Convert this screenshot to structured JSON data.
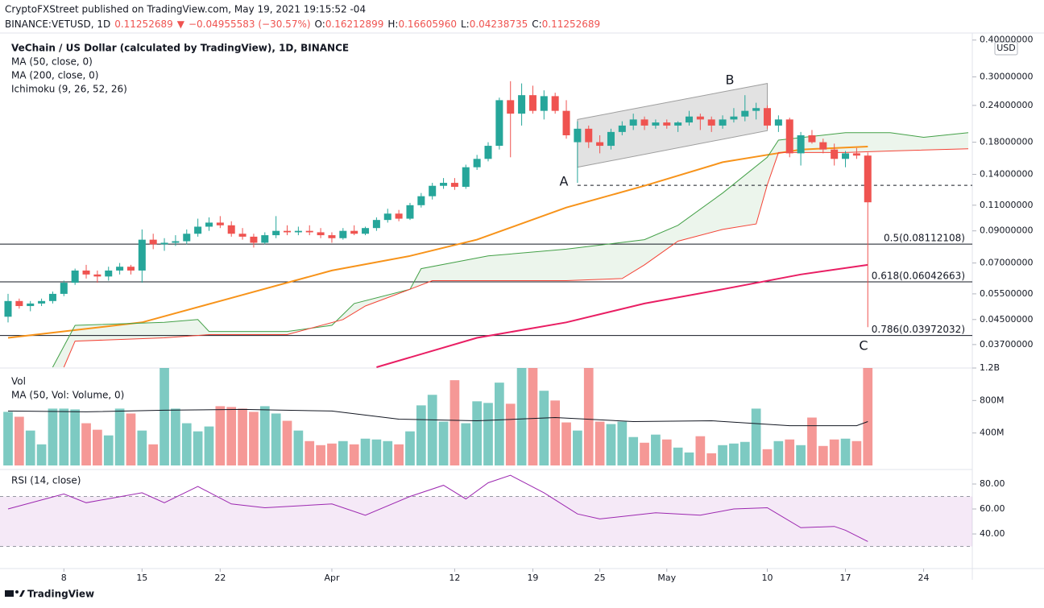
{
  "header": {
    "publisher": "CryptoFXStreet published on TradingView.com, May 19, 2021 19:15:52 -04",
    "symbol": "BINANCE:VETUSD, 1D",
    "last": "0.11252689",
    "arrow": "▼",
    "change": "−0.04955583 (−30.57%)",
    "ohlc": [
      {
        "label": "O:",
        "value": "0.16212899"
      },
      {
        "label": "H:",
        "value": "0.16605960"
      },
      {
        "label": "L:",
        "value": "0.04238735"
      },
      {
        "label": "C:",
        "value": "0.11252689"
      }
    ]
  },
  "footer": "TradingView",
  "chart_data": {
    "type": "candlestick",
    "title": "VeChain / US Dollar (calculated by TradingView), 1D, BINANCE",
    "currency": "USD",
    "log_scale": true,
    "xlim": [
      "2021-03-03",
      "2021-05-28"
    ],
    "xticks": [
      {
        "value": "2021-03-08",
        "label": "8"
      },
      {
        "value": "2021-03-15",
        "label": "15"
      },
      {
        "value": "2021-03-22",
        "label": "22"
      },
      {
        "value": "2021-04-01",
        "label": "Apr"
      },
      {
        "value": "2021-04-12",
        "label": "12"
      },
      {
        "value": "2021-04-19",
        "label": "19"
      },
      {
        "value": "2021-04-25",
        "label": "25"
      },
      {
        "value": "2021-05-01",
        "label": "May"
      },
      {
        "value": "2021-05-10",
        "label": "10"
      },
      {
        "value": "2021-05-17",
        "label": "17"
      },
      {
        "value": "2021-05-24",
        "label": "24"
      }
    ],
    "ylim": [
      0.0308,
      0.42
    ],
    "yticks": [
      {
        "value": 0.4,
        "label": "0.40000000"
      },
      {
        "value": 0.3,
        "label": "0.30000000"
      },
      {
        "value": 0.24,
        "label": "0.24000000"
      },
      {
        "value": 0.18,
        "label": "0.18000000"
      },
      {
        "value": 0.14,
        "label": "0.14000000"
      },
      {
        "value": 0.11,
        "label": "0.11000000"
      },
      {
        "value": 0.09,
        "label": "0.09000000"
      },
      {
        "value": 0.07,
        "label": "0.07000000"
      },
      {
        "value": 0.055,
        "label": "0.05500000"
      },
      {
        "value": 0.045,
        "label": "0.04500000"
      },
      {
        "value": 0.037,
        "label": "0.03700000"
      }
    ],
    "up_color": "#26a69a",
    "down_color": "#ef5350",
    "x": [
      "2021-03-03",
      "2021-03-04",
      "2021-03-05",
      "2021-03-06",
      "2021-03-07",
      "2021-03-08",
      "2021-03-09",
      "2021-03-10",
      "2021-03-11",
      "2021-03-12",
      "2021-03-13",
      "2021-03-14",
      "2021-03-15",
      "2021-03-16",
      "2021-03-17",
      "2021-03-18",
      "2021-03-19",
      "2021-03-20",
      "2021-03-21",
      "2021-03-22",
      "2021-03-23",
      "2021-03-24",
      "2021-03-25",
      "2021-03-26",
      "2021-03-27",
      "2021-03-28",
      "2021-03-29",
      "2021-03-30",
      "2021-03-31",
      "2021-04-01",
      "2021-04-02",
      "2021-04-03",
      "2021-04-04",
      "2021-04-05",
      "2021-04-06",
      "2021-04-07",
      "2021-04-08",
      "2021-04-09",
      "2021-04-10",
      "2021-04-11",
      "2021-04-12",
      "2021-04-13",
      "2021-04-14",
      "2021-04-15",
      "2021-04-16",
      "2021-04-17",
      "2021-04-18",
      "2021-04-19",
      "2021-04-20",
      "2021-04-21",
      "2021-04-22",
      "2021-04-23",
      "2021-04-24",
      "2021-04-25",
      "2021-04-26",
      "2021-04-27",
      "2021-04-28",
      "2021-04-29",
      "2021-04-30",
      "2021-05-01",
      "2021-05-02",
      "2021-05-03",
      "2021-05-04",
      "2021-05-05",
      "2021-05-06",
      "2021-05-07",
      "2021-05-08",
      "2021-05-09",
      "2021-05-10",
      "2021-05-11",
      "2021-05-12",
      "2021-05-13",
      "2021-05-14",
      "2021-05-15",
      "2021-05-16",
      "2021-05-17",
      "2021-05-18",
      "2021-05-19"
    ],
    "open": [
      0.046,
      0.052,
      0.05,
      0.051,
      0.052,
      0.055,
      0.06,
      0.066,
      0.064,
      0.063,
      0.066,
      0.068,
      0.066,
      0.084,
      0.081,
      0.082,
      0.083,
      0.088,
      0.093,
      0.096,
      0.094,
      0.088,
      0.086,
      0.082,
      0.087,
      0.09,
      0.089,
      0.09,
      0.089,
      0.087,
      0.085,
      0.09,
      0.088,
      0.092,
      0.098,
      0.103,
      0.099,
      0.11,
      0.118,
      0.128,
      0.131,
      0.127,
      0.148,
      0.158,
      0.175,
      0.25,
      0.225,
      0.26,
      0.23,
      0.258,
      0.23,
      0.18,
      0.2,
      0.18,
      0.175,
      0.195,
      0.205,
      0.215,
      0.205,
      0.21,
      0.205,
      0.21,
      0.22,
      0.215,
      0.205,
      0.215,
      0.22,
      0.23,
      0.235,
      0.205,
      0.215,
      0.165,
      0.19,
      0.18,
      0.17,
      0.158,
      0.165,
      0.16212899
    ],
    "high": [
      0.055,
      0.053,
      0.052,
      0.053,
      0.056,
      0.061,
      0.067,
      0.069,
      0.066,
      0.068,
      0.07,
      0.069,
      0.091,
      0.088,
      0.085,
      0.087,
      0.091,
      0.099,
      0.1,
      0.101,
      0.097,
      0.092,
      0.088,
      0.089,
      0.101,
      0.094,
      0.093,
      0.094,
      0.092,
      0.089,
      0.092,
      0.094,
      0.093,
      0.1,
      0.107,
      0.106,
      0.112,
      0.121,
      0.131,
      0.136,
      0.136,
      0.151,
      0.163,
      0.18,
      0.255,
      0.29,
      0.285,
      0.28,
      0.27,
      0.265,
      0.25,
      0.212,
      0.205,
      0.19,
      0.2,
      0.212,
      0.225,
      0.22,
      0.215,
      0.215,
      0.212,
      0.23,
      0.225,
      0.22,
      0.222,
      0.235,
      0.26,
      0.245,
      0.24,
      0.222,
      0.218,
      0.195,
      0.198,
      0.185,
      0.178,
      0.168,
      0.172,
      0.1660596
    ],
    "low": [
      0.044,
      0.049,
      0.048,
      0.05,
      0.051,
      0.054,
      0.059,
      0.062,
      0.06,
      0.061,
      0.064,
      0.064,
      0.06,
      0.078,
      0.077,
      0.08,
      0.081,
      0.086,
      0.09,
      0.092,
      0.086,
      0.084,
      0.079,
      0.081,
      0.085,
      0.087,
      0.087,
      0.087,
      0.085,
      0.082,
      0.084,
      0.087,
      0.087,
      0.09,
      0.096,
      0.097,
      0.098,
      0.108,
      0.115,
      0.125,
      0.124,
      0.125,
      0.145,
      0.155,
      0.17,
      0.16,
      0.205,
      0.225,
      0.215,
      0.225,
      0.185,
      0.131,
      0.172,
      0.165,
      0.17,
      0.19,
      0.198,
      0.198,
      0.2,
      0.2,
      0.195,
      0.205,
      0.198,
      0.195,
      0.2,
      0.21,
      0.212,
      0.215,
      0.2,
      0.195,
      0.16,
      0.15,
      0.178,
      0.165,
      0.15,
      0.148,
      0.158,
      0.04238735
    ],
    "close": [
      0.052,
      0.05,
      0.051,
      0.052,
      0.055,
      0.06,
      0.066,
      0.064,
      0.063,
      0.066,
      0.068,
      0.066,
      0.084,
      0.081,
      0.082,
      0.083,
      0.088,
      0.093,
      0.096,
      0.094,
      0.088,
      0.086,
      0.082,
      0.087,
      0.09,
      0.089,
      0.09,
      0.089,
      0.087,
      0.085,
      0.09,
      0.088,
      0.092,
      0.098,
      0.103,
      0.099,
      0.11,
      0.118,
      0.128,
      0.131,
      0.127,
      0.148,
      0.158,
      0.175,
      0.25,
      0.225,
      0.26,
      0.23,
      0.258,
      0.23,
      0.19,
      0.2,
      0.18,
      0.175,
      0.195,
      0.205,
      0.215,
      0.205,
      0.21,
      0.205,
      0.21,
      0.22,
      0.215,
      0.205,
      0.215,
      0.22,
      0.23,
      0.235,
      0.205,
      0.215,
      0.165,
      0.19,
      0.18,
      0.17,
      0.158,
      0.165,
      0.16212899,
      0.11252689
    ],
    "indicators": [
      {
        "name": "MA (50, close, 0)",
        "color": "#f7931a",
        "x": [
          "2021-03-03",
          "2021-03-15",
          "2021-03-22",
          "2021-04-01",
          "2021-04-08",
          "2021-04-14",
          "2021-04-22",
          "2021-04-29",
          "2021-05-06",
          "2021-05-10",
          "2021-05-13",
          "2021-05-19"
        ],
        "values": [
          0.039,
          0.044,
          0.052,
          0.066,
          0.074,
          0.084,
          0.108,
          0.128,
          0.154,
          0.163,
          0.17,
          0.174
        ]
      },
      {
        "name": "MA (200, close, 0)",
        "color": "#e91e63",
        "x": [
          "2021-04-05",
          "2021-04-14",
          "2021-04-22",
          "2021-04-29",
          "2021-05-06",
          "2021-05-13",
          "2021-05-19"
        ],
        "values": [
          0.031,
          0.039,
          0.044,
          0.051,
          0.057,
          0.064,
          0.069
        ]
      },
      {
        "name": "Ichimoku (9, 26, 52, 26)",
        "color": "#43a047",
        "x": [
          "2021-03-07",
          "2021-03-09",
          "2021-03-17",
          "2021-03-20",
          "2021-03-21",
          "2021-03-28",
          "2021-04-01",
          "2021-04-03",
          "2021-04-08",
          "2021-04-09",
          "2021-04-15",
          "2021-04-22",
          "2021-04-29",
          "2021-05-02",
          "2021-05-06",
          "2021-05-10",
          "2021-05-11",
          "2021-05-17",
          "2021-05-21",
          "2021-05-24",
          "2021-05-28"
        ],
        "values": [
          0.031,
          0.043,
          0.044,
          0.045,
          0.041,
          0.041,
          0.043,
          0.051,
          0.057,
          0.067,
          0.074,
          0.078,
          0.084,
          0.094,
          0.121,
          0.16,
          0.183,
          0.194,
          0.194,
          0.187,
          0.194
        ]
      },
      {
        "color": "#f44336",
        "x": [
          "2021-03-08",
          "2021-03-09",
          "2021-03-17",
          "2021-03-21",
          "2021-03-28",
          "2021-04-02",
          "2021-04-04",
          "2021-04-08",
          "2021-04-10",
          "2021-04-22",
          "2021-04-27",
          "2021-04-29",
          "2021-05-02",
          "2021-05-06",
          "2021-05-09",
          "2021-05-10",
          "2021-05-11",
          "2021-05-17",
          "2021-05-21",
          "2021-05-28"
        ],
        "values": [
          0.031,
          0.038,
          0.039,
          0.04,
          0.04,
          0.045,
          0.05,
          0.057,
          0.061,
          0.061,
          0.062,
          0.069,
          0.083,
          0.091,
          0.095,
          0.129,
          0.166,
          0.166,
          0.168,
          0.171
        ]
      }
    ],
    "cloud_color": "#43a047",
    "channel": {
      "x": [
        "2021-04-23",
        "2021-05-10"
      ],
      "upper": [
        0.215,
        0.285
      ],
      "lower": [
        0.148,
        0.197
      ]
    },
    "support": {
      "x": "2021-04-23",
      "value": 0.1285
    },
    "levels": [
      {
        "value": 0.08112108,
        "label": "0.5(0.08112108)"
      },
      {
        "value": 0.06042663,
        "label": "0.618(0.06042663)"
      },
      {
        "value": 0.03972032,
        "label": "0.786(0.03972032)"
      }
    ],
    "annotations": [
      "A",
      "B",
      "C"
    ],
    "volume": {
      "title": "Vol",
      "ma_name": "MA (50, Vol: Volume, 0)",
      "values": [
        660000000.0,
        600000000.0,
        430000000.0,
        260000000.0,
        700000000.0,
        700000000.0,
        690000000.0,
        520000000.0,
        440000000.0,
        370000000.0,
        700000000.0,
        640000000.0,
        430000000.0,
        260000000.0,
        1200000000.0,
        700000000.0,
        520000000.0,
        420000000.0,
        480000000.0,
        730000000.0,
        720000000.0,
        700000000.0,
        660000000.0,
        730000000.0,
        640000000.0,
        550000000.0,
        430000000.0,
        300000000.0,
        250000000.0,
        270000000.0,
        300000000.0,
        260000000.0,
        330000000.0,
        320000000.0,
        300000000.0,
        260000000.0,
        420000000.0,
        740000000.0,
        870000000.0,
        540000000.0,
        1050000000.0,
        520000000.0,
        790000000.0,
        770000000.0,
        1020000000.0,
        760000000.0,
        1200000000.0,
        1200000000.0,
        920000000.0,
        800000000.0,
        530000000.0,
        430000000.0,
        1200000000.0,
        540000000.0,
        510000000.0,
        540000000.0,
        350000000.0,
        280000000.0,
        380000000.0,
        320000000.0,
        220000000.0,
        160000000.0,
        360000000.0,
        150000000.0,
        250000000.0,
        270000000.0,
        290000000.0,
        700000000.0,
        200000000.0,
        300000000.0,
        320000000.0,
        250000000.0,
        590000000.0,
        240000000.0,
        320000000.0,
        330000000.0,
        300000000.0,
        1250000000.0
      ],
      "ma_x": [
        "2021-03-03",
        "2021-03-10",
        "2021-03-17",
        "2021-03-24",
        "2021-04-01",
        "2021-04-07",
        "2021-04-14",
        "2021-04-21",
        "2021-04-28",
        "2021-05-05",
        "2021-05-12",
        "2021-05-18",
        "2021-05-19"
      ],
      "ma_values": [
        670000000.0,
        660000000.0,
        680000000.0,
        690000000.0,
        670000000.0,
        570000000.0,
        550000000.0,
        590000000.0,
        540000000.0,
        550000000.0,
        490000000.0,
        490000000.0,
        540000000.0
      ],
      "ylim": [
        0,
        1200000000.0
      ],
      "yticks": [
        {
          "value": 400000000.0,
          "label": "400M"
        },
        {
          "value": 800000000.0,
          "label": "800M"
        },
        {
          "value": 1200000000.0,
          "label": "1.2B"
        }
      ]
    },
    "rsi": {
      "title": "RSI (14, close)",
      "color": "#9c27b0",
      "x": [
        "2021-03-03",
        "2021-03-08",
        "2021-03-10",
        "2021-03-15",
        "2021-03-17",
        "2021-03-20",
        "2021-03-23",
        "2021-03-26",
        "2021-04-01",
        "2021-04-04",
        "2021-04-08",
        "2021-04-11",
        "2021-04-13",
        "2021-04-15",
        "2021-04-17",
        "2021-04-20",
        "2021-04-23",
        "2021-04-25",
        "2021-04-30",
        "2021-05-04",
        "2021-05-07",
        "2021-05-10",
        "2021-05-13",
        "2021-05-16",
        "2021-05-17",
        "2021-05-19"
      ],
      "values": [
        60,
        72,
        65,
        73,
        65,
        78,
        64,
        61,
        64,
        55,
        70,
        79,
        68,
        81,
        87,
        73,
        56,
        52,
        57,
        55,
        60,
        61,
        45,
        46,
        43,
        34
      ],
      "band": [
        30,
        70
      ],
      "ylim": [
        12.3,
        88.4
      ],
      "yticks": [
        {
          "value": 40,
          "label": "40.00"
        },
        {
          "value": 60,
          "label": "60.00"
        },
        {
          "value": 80,
          "label": "80.00"
        }
      ]
    }
  }
}
